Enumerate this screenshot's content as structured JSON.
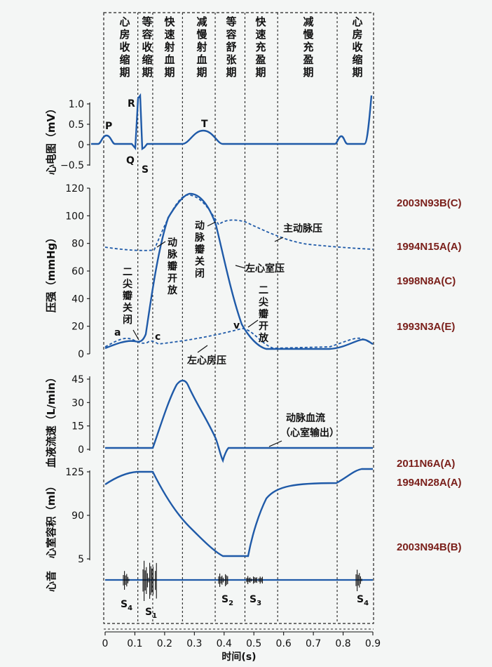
{
  "phases": [
    {
      "label": "心房收缩期",
      "t0": 0.0,
      "t1": 0.11
    },
    {
      "label": "等容收缩期",
      "t0": 0.11,
      "t1": 0.16
    },
    {
      "label": "快速射血期",
      "t0": 0.16,
      "t1": 0.26
    },
    {
      "label": "减慢射血期",
      "t0": 0.26,
      "t1": 0.37
    },
    {
      "label": "等容舒张期",
      "t0": 0.37,
      "t1": 0.47
    },
    {
      "label": "快速充盈期",
      "t0": 0.47,
      "t1": 0.58
    },
    {
      "label": "减慢充盈期",
      "t0": 0.58,
      "t1": 0.78
    },
    {
      "label": "心房收缩期",
      "t0": 0.78,
      "t1": 0.9
    }
  ],
  "ecg": {
    "ylabel": "心电图（mV）",
    "ticks": [
      "1.0",
      "0.5",
      "0",
      "−0.5"
    ],
    "wave_labels": {
      "P": "P",
      "R": "R",
      "Q": "Q",
      "S": "S",
      "T": "T"
    }
  },
  "pressure": {
    "ylabel": "压强（mmHg）",
    "ticks": [
      "120",
      "100",
      "80",
      "60",
      "40",
      "20",
      "0"
    ],
    "labels": {
      "aortic": "主动脉压",
      "lv": "左心室压",
      "la": "左心房压",
      "aortic_open": "动脉瓣开放",
      "aortic_close": "动脉瓣关闭",
      "mitral_close": "二尖瓣关闭",
      "mitral_open": "二尖瓣开放",
      "a": "a",
      "c": "c",
      "v": "v"
    }
  },
  "flow": {
    "ylabel": "血液流速（L/min）",
    "ticks": [
      "45",
      "30",
      "15",
      "0"
    ],
    "label_line1": "动脉血流",
    "label_line2": "（心室输出）"
  },
  "volume": {
    "ylabel": "心室容积（ml）",
    "ticks": [
      "125",
      "90",
      "5"
    ]
  },
  "sounds": {
    "ylabel": "心音",
    "labels": {
      "s4a": "S",
      "s4a_sub": "4",
      "s1": "S",
      "s1_sub": "1",
      "s2": "S",
      "s2_sub": "2",
      "s3": "S",
      "s3_sub": "3",
      "s4b": "S",
      "s4b_sub": "4"
    }
  },
  "time_axis": {
    "label": "时间(s)",
    "ticks": [
      "0",
      "0.1",
      "0.2",
      "0.3",
      "0.4",
      "0.5",
      "0.6",
      "0.7",
      "0.8",
      "0.9"
    ]
  },
  "codes": [
    "2003N93B(C)",
    "1994N15A(A)",
    "1998N8A(C)",
    "1993N3A(E)",
    "2011N6A(A)",
    "1994N28A(A)",
    "2003N94B(B)"
  ],
  "colors": {
    "curve": "#1f5aa8",
    "code": "#7a1f1a"
  }
}
